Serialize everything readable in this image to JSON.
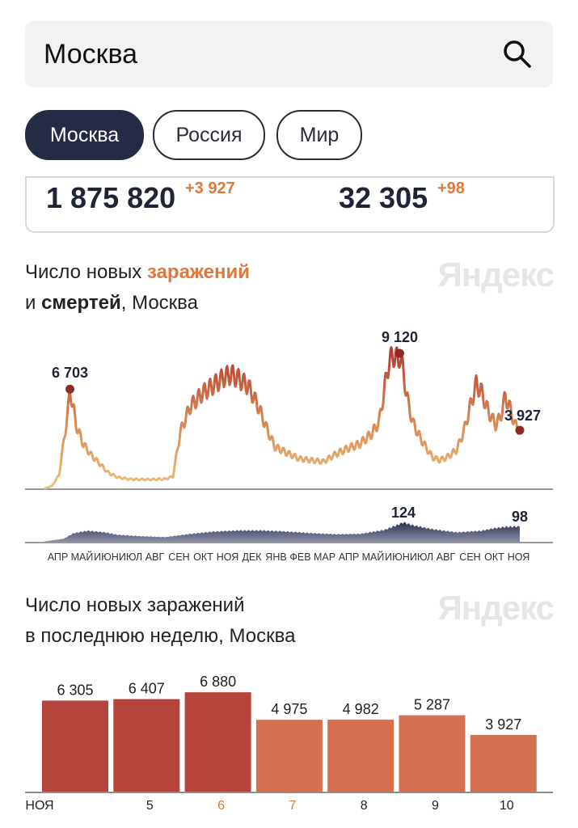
{
  "search": {
    "value": "Москва"
  },
  "tabs": [
    {
      "label": "Москва",
      "active": true
    },
    {
      "label": "Россия",
      "active": false
    },
    {
      "label": "Мир",
      "active": false
    }
  ],
  "stats": {
    "cases_total": "1 875 820",
    "cases_delta": "+3 927",
    "deaths_total": "32 305",
    "deaths_delta": "+98"
  },
  "chart1": {
    "title_line1_prefix": "Число новых ",
    "title_line1_highlight": "заражений",
    "title_line2_prefix": "и ",
    "title_line2_bold": "смертей",
    "title_line2_suffix": ", Москва",
    "brand": "Яндекс"
  },
  "chart2": {
    "title_line1": "Число новых заражений",
    "title_line2": "в последнюю неделю, Москва",
    "brand": "Яндекс"
  },
  "colors": {
    "accent": "#e0783a",
    "dark": "#252a45",
    "bar_dark": "#b5453a",
    "bar_light": "#d2704f"
  },
  "chart_data": [
    {
      "type": "line",
      "name": "new cases",
      "x_tick_labels": [
        "АПР",
        "МАЙ",
        "ИЮН",
        "ИЮЛ",
        "АВГ",
        "СЕН",
        "ОКТ",
        "НОЯ",
        "ДЕК",
        "ЯНВ",
        "ФЕВ",
        "МАР",
        "АПР",
        "МАЙ",
        "ИЮН",
        "ИЮЛ",
        "АВГ",
        "СЕН",
        "ОКТ",
        "НОЯ"
      ],
      "annotations": [
        {
          "label": "6 703",
          "value": 6703,
          "month_index": 1.05
        },
        {
          "label": "9 120",
          "value": 9120,
          "month_index": 14.65
        },
        {
          "label": "3 927",
          "value": 3927,
          "month_index": 19.6
        }
      ],
      "months": [
        0,
        0.3,
        0.6,
        0.8,
        1.0,
        1.05,
        1.15,
        1.3,
        1.6,
        1.9,
        2.2,
        2.6,
        3.0,
        3.5,
        4.0,
        4.5,
        5.0,
        5.3,
        5.6,
        6.0,
        6.5,
        7.0,
        7.4,
        7.7,
        8.0,
        8.4,
        8.8,
        9.2,
        9.5,
        10.0,
        10.5,
        11.0,
        11.5,
        12.0,
        12.5,
        13.0,
        13.5,
        13.8,
        14.0,
        14.2,
        14.4,
        14.6,
        14.65,
        14.8,
        15.0,
        15.2,
        15.5,
        15.8,
        16.0,
        16.3,
        16.6,
        17.0,
        17.3,
        17.6,
        17.8,
        18.0,
        18.3,
        18.6,
        18.8,
        19.0,
        19.2,
        19.4,
        19.6
      ],
      "values": [
        0,
        150,
        900,
        3200,
        5600,
        6703,
        5800,
        4300,
        3000,
        2300,
        1800,
        1100,
        750,
        620,
        600,
        600,
        640,
        800,
        3800,
        5500,
        6400,
        7000,
        7500,
        7700,
        7400,
        6900,
        5600,
        3900,
        2800,
        2400,
        2000,
        1900,
        1800,
        2300,
        2700,
        3000,
        3700,
        4500,
        6500,
        8500,
        9000,
        8600,
        9120,
        7800,
        5700,
        4400,
        3400,
        2600,
        2100,
        1900,
        2100,
        2600,
        3900,
        5800,
        7000,
        6600,
        5200,
        4300,
        4800,
        6200,
        5400,
        4300,
        3927
      ],
      "y_range": [
        0,
        9500
      ]
    },
    {
      "type": "area",
      "name": "new deaths",
      "annotations": [
        {
          "label": "124",
          "value": 124,
          "month_index": 14.8
        },
        {
          "label": "98",
          "value": 98,
          "month_index": 19.6
        }
      ],
      "months": [
        0,
        0.8,
        1.2,
        1.8,
        2.5,
        3.0,
        4.0,
        5.0,
        6.0,
        7.0,
        8.0,
        9.0,
        10.0,
        11.0,
        12.0,
        13.0,
        14.0,
        14.6,
        14.8,
        15.2,
        16.0,
        17.0,
        18.0,
        18.5,
        19.0,
        19.6
      ],
      "values": [
        2,
        20,
        55,
        70,
        60,
        45,
        35,
        30,
        50,
        65,
        72,
        72,
        65,
        55,
        48,
        50,
        75,
        110,
        124,
        105,
        80,
        60,
        70,
        85,
        95,
        98
      ],
      "y_range": [
        0,
        130
      ]
    },
    {
      "type": "bar",
      "title": "Число новых заражений в последнюю неделю, Москва",
      "categories": [
        "НОЯ",
        "5",
        "6",
        "7",
        "8",
        "9",
        "10"
      ],
      "values": [
        6305,
        6407,
        6880,
        4975,
        4982,
        5287,
        3927
      ],
      "value_labels": [
        "6 305",
        "6 407",
        "6 880",
        "4 975",
        "4 982",
        "5 287",
        "3 927"
      ],
      "category_colors": [
        "#222",
        "#222",
        "#e0783a",
        "#e0783a",
        "#222",
        "#222",
        "#222"
      ],
      "bar_colors": [
        "#b5453a",
        "#b5453a",
        "#b5453a",
        "#d2704f",
        "#d2704f",
        "#d2704f",
        "#d2704f"
      ],
      "ylim": [
        0,
        7000
      ]
    }
  ]
}
